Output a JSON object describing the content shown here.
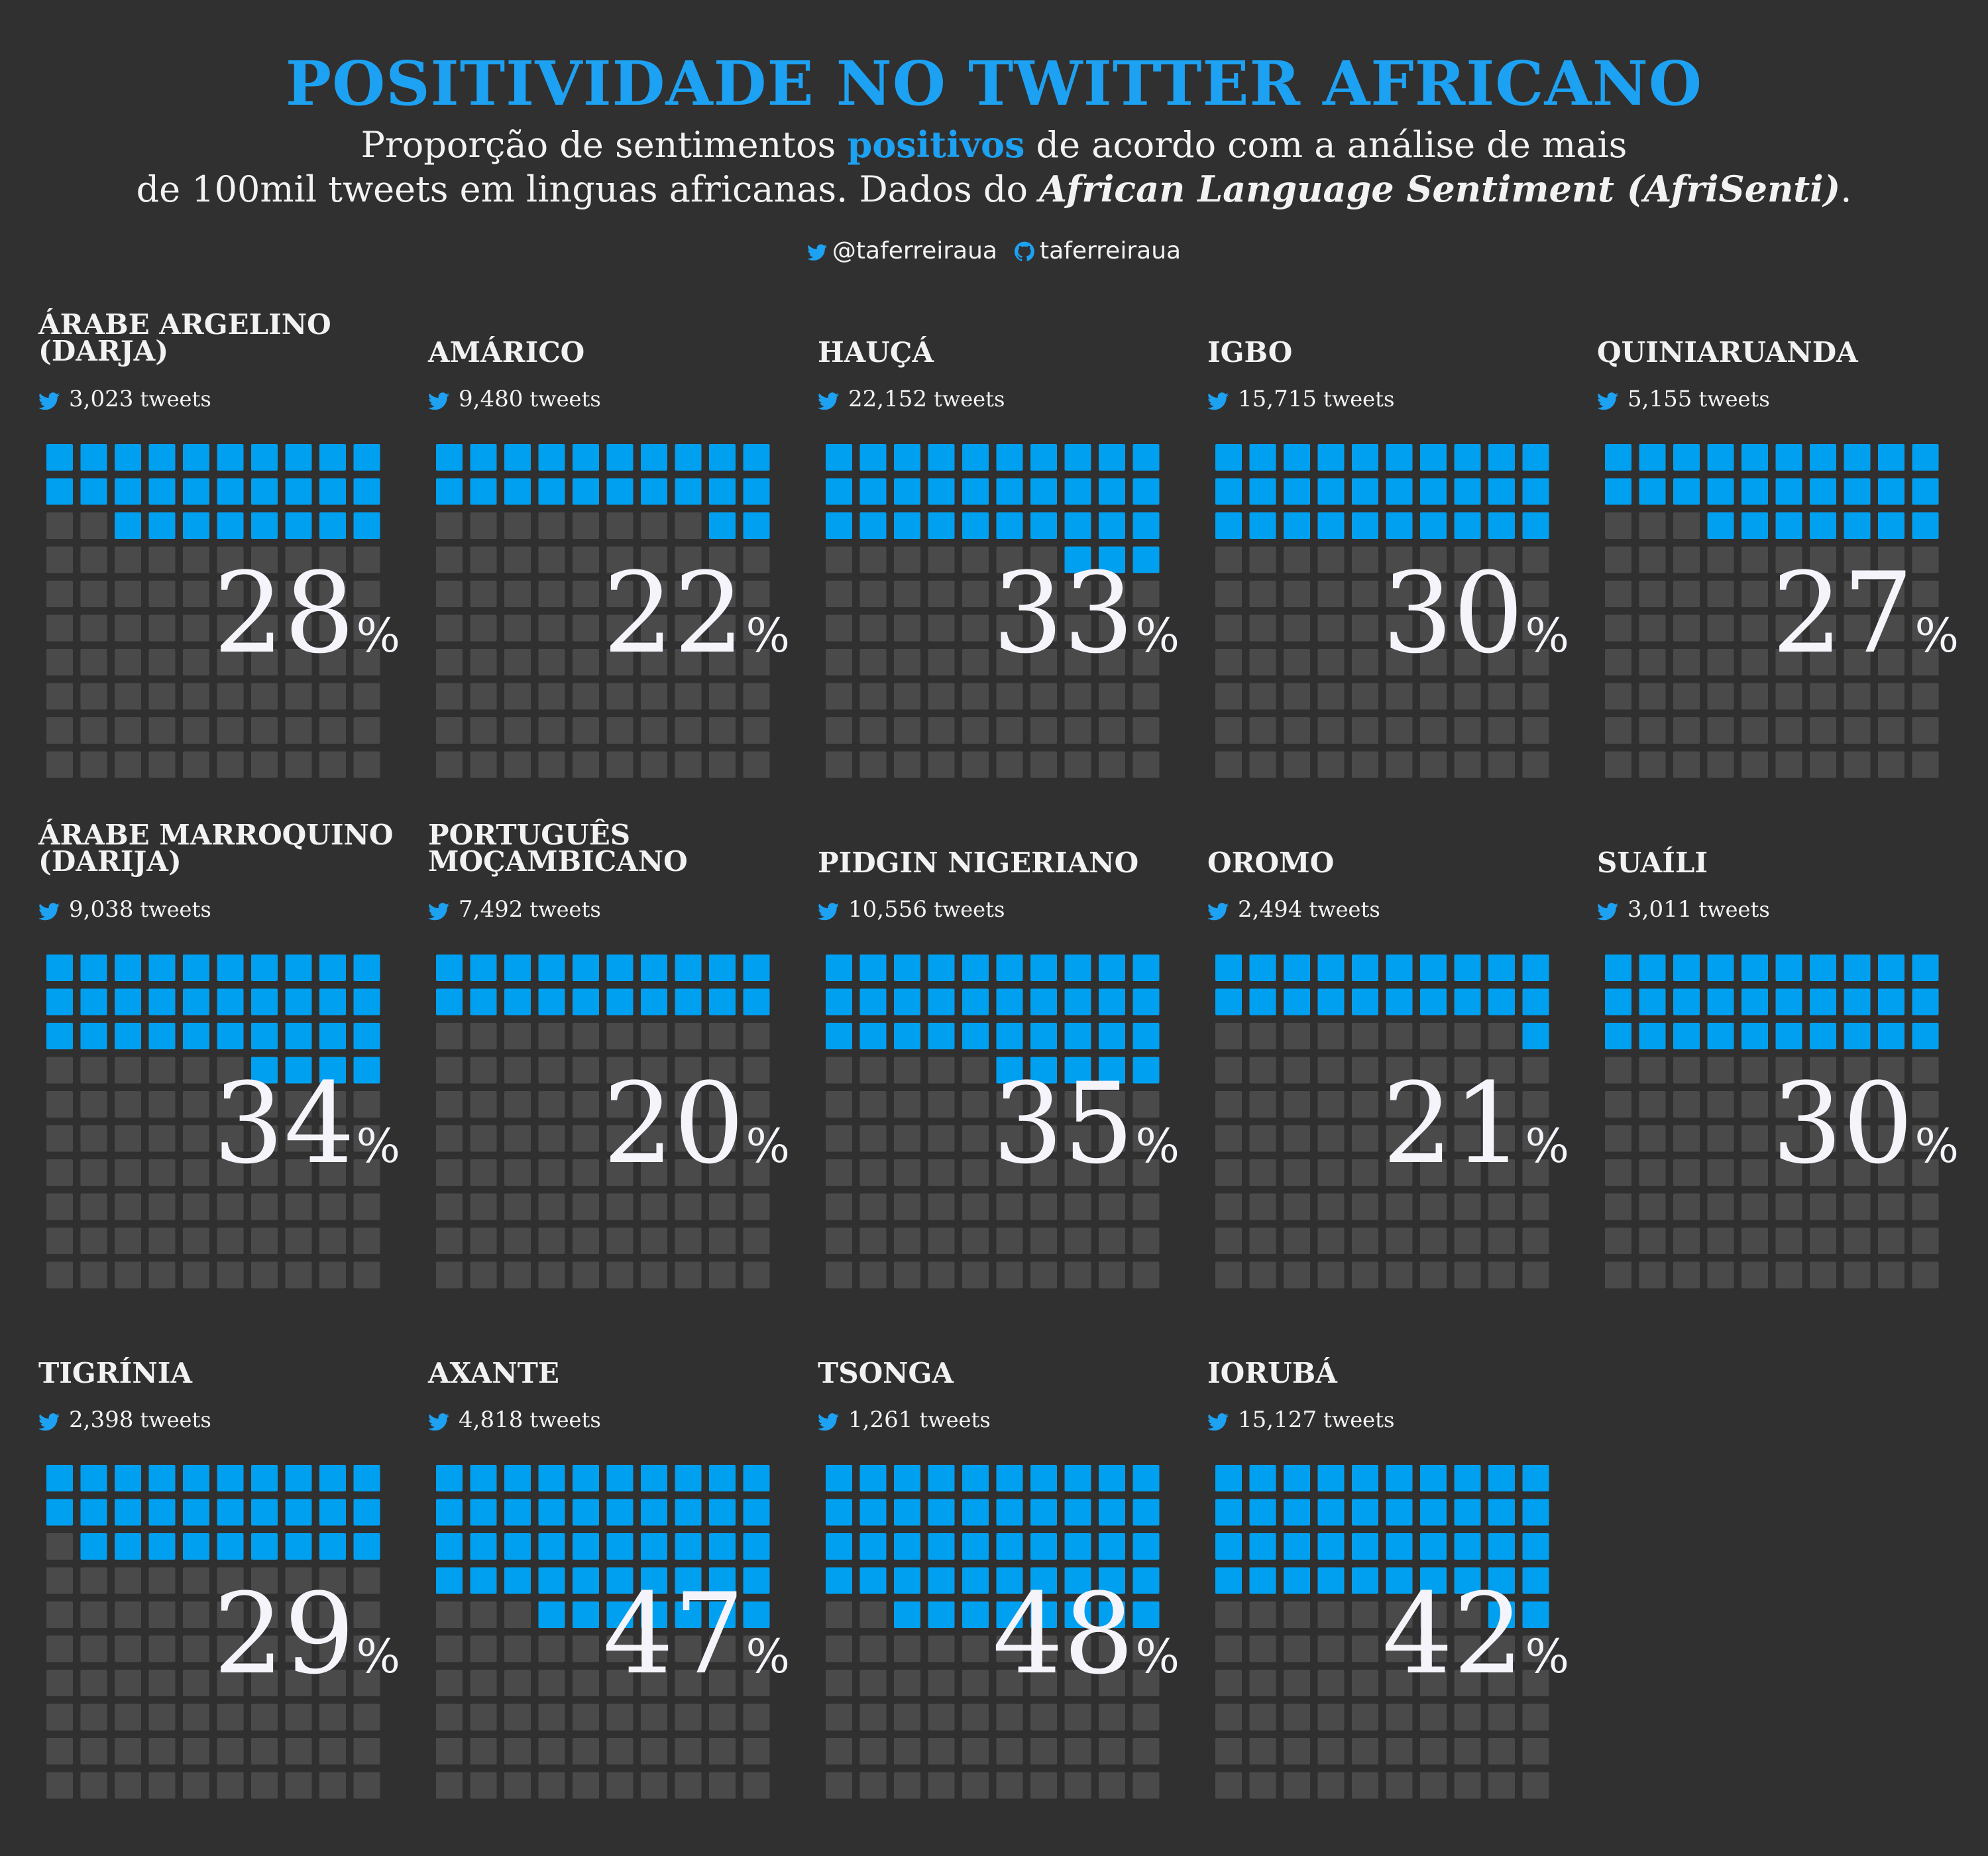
{
  "header": {
    "title": "POSITIVIDADE NO TWITTER AFRICANO",
    "subtitle_part1": "Proporção de sentimentos ",
    "subtitle_highlight": "positivos",
    "subtitle_part2": " de acordo com a análise de mais",
    "subtitle_line2": "de 100mil tweets em linguas africanas. Dados do ",
    "subtitle_source": "African Language Sentiment (AfriSenti)",
    "subtitle_end": "."
  },
  "credits": {
    "twitter_handle": "@taferreiraua",
    "github_handle": "taferreiraua"
  },
  "colors": {
    "background": "#303030",
    "positive": "#00a0f0",
    "empty": "#4a4a4a",
    "accent": "#1da1f2"
  },
  "icons": {
    "twitter": "twitter-bird-icon",
    "github": "github-icon"
  },
  "tweets_label": "tweets",
  "percent_sign": "%",
  "chart_data": {
    "type": "waffle",
    "grid": {
      "rows": 10,
      "cols": 10
    },
    "fill_order": "top-down, right-to-left",
    "series": [
      {
        "language": "ÁRABE ARGELINO (DARJA)",
        "tweets": "3,023",
        "percent": 28
      },
      {
        "language": "AMÁRICO",
        "tweets": "9,480",
        "percent": 22
      },
      {
        "language": "HAUÇÁ",
        "tweets": "22,152",
        "percent": 33
      },
      {
        "language": "IGBO",
        "tweets": "15,715",
        "percent": 30
      },
      {
        "language": "QUINIARUANDA",
        "tweets": "5,155",
        "percent": 27
      },
      {
        "language": "ÁRABE MARROQUINO (DARIJA)",
        "tweets": "9,038",
        "percent": 34
      },
      {
        "language": "PORTUGUÊS MOÇAMBICANO",
        "tweets": "7,492",
        "percent": 20
      },
      {
        "language": "PIDGIN NIGERIANO",
        "tweets": "10,556",
        "percent": 35
      },
      {
        "language": "OROMO",
        "tweets": "2,494",
        "percent": 21
      },
      {
        "language": "SUAÍLI",
        "tweets": "3,011",
        "percent": 30
      },
      {
        "language": "TIGRÍNIA",
        "tweets": "2,398",
        "percent": 29
      },
      {
        "language": "AXANTE",
        "tweets": "4,818",
        "percent": 47
      },
      {
        "language": "TSONGA",
        "tweets": "1,261",
        "percent": 48
      },
      {
        "language": "IORUBÁ",
        "tweets": "15,127",
        "percent": 42
      }
    ]
  }
}
